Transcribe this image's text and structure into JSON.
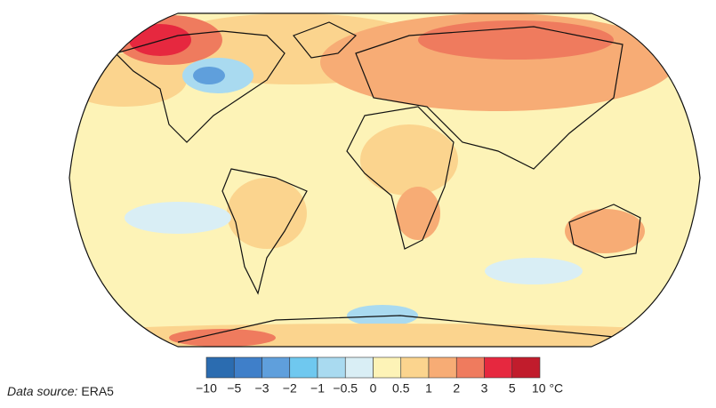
{
  "map": {
    "colorbar": {
      "ticks": [
        {
          "value": -10,
          "label": "−10"
        },
        {
          "value": -5,
          "label": "−5"
        },
        {
          "value": -3,
          "label": "−3"
        },
        {
          "value": -2,
          "label": "−2"
        },
        {
          "value": -1,
          "label": "−1"
        },
        {
          "value": -0.5,
          "label": "−0.5"
        },
        0,
        0.5,
        1,
        2,
        3,
        5,
        {
          "value": 10,
          "label": "10 °C"
        }
      ],
      "colors": [
        "#2b6cb0",
        "#3f7fc9",
        "#5f9fdc",
        "#6fc8ef",
        "#a9daf0",
        "#d9eef5",
        "#fdf3b7",
        "#fbd48e",
        "#f7ac75",
        "#ef7b5e",
        "#e6283f",
        "#c11c2c"
      ]
    },
    "source": {
      "label": "Data source:",
      "value": "ERA5"
    }
  }
}
